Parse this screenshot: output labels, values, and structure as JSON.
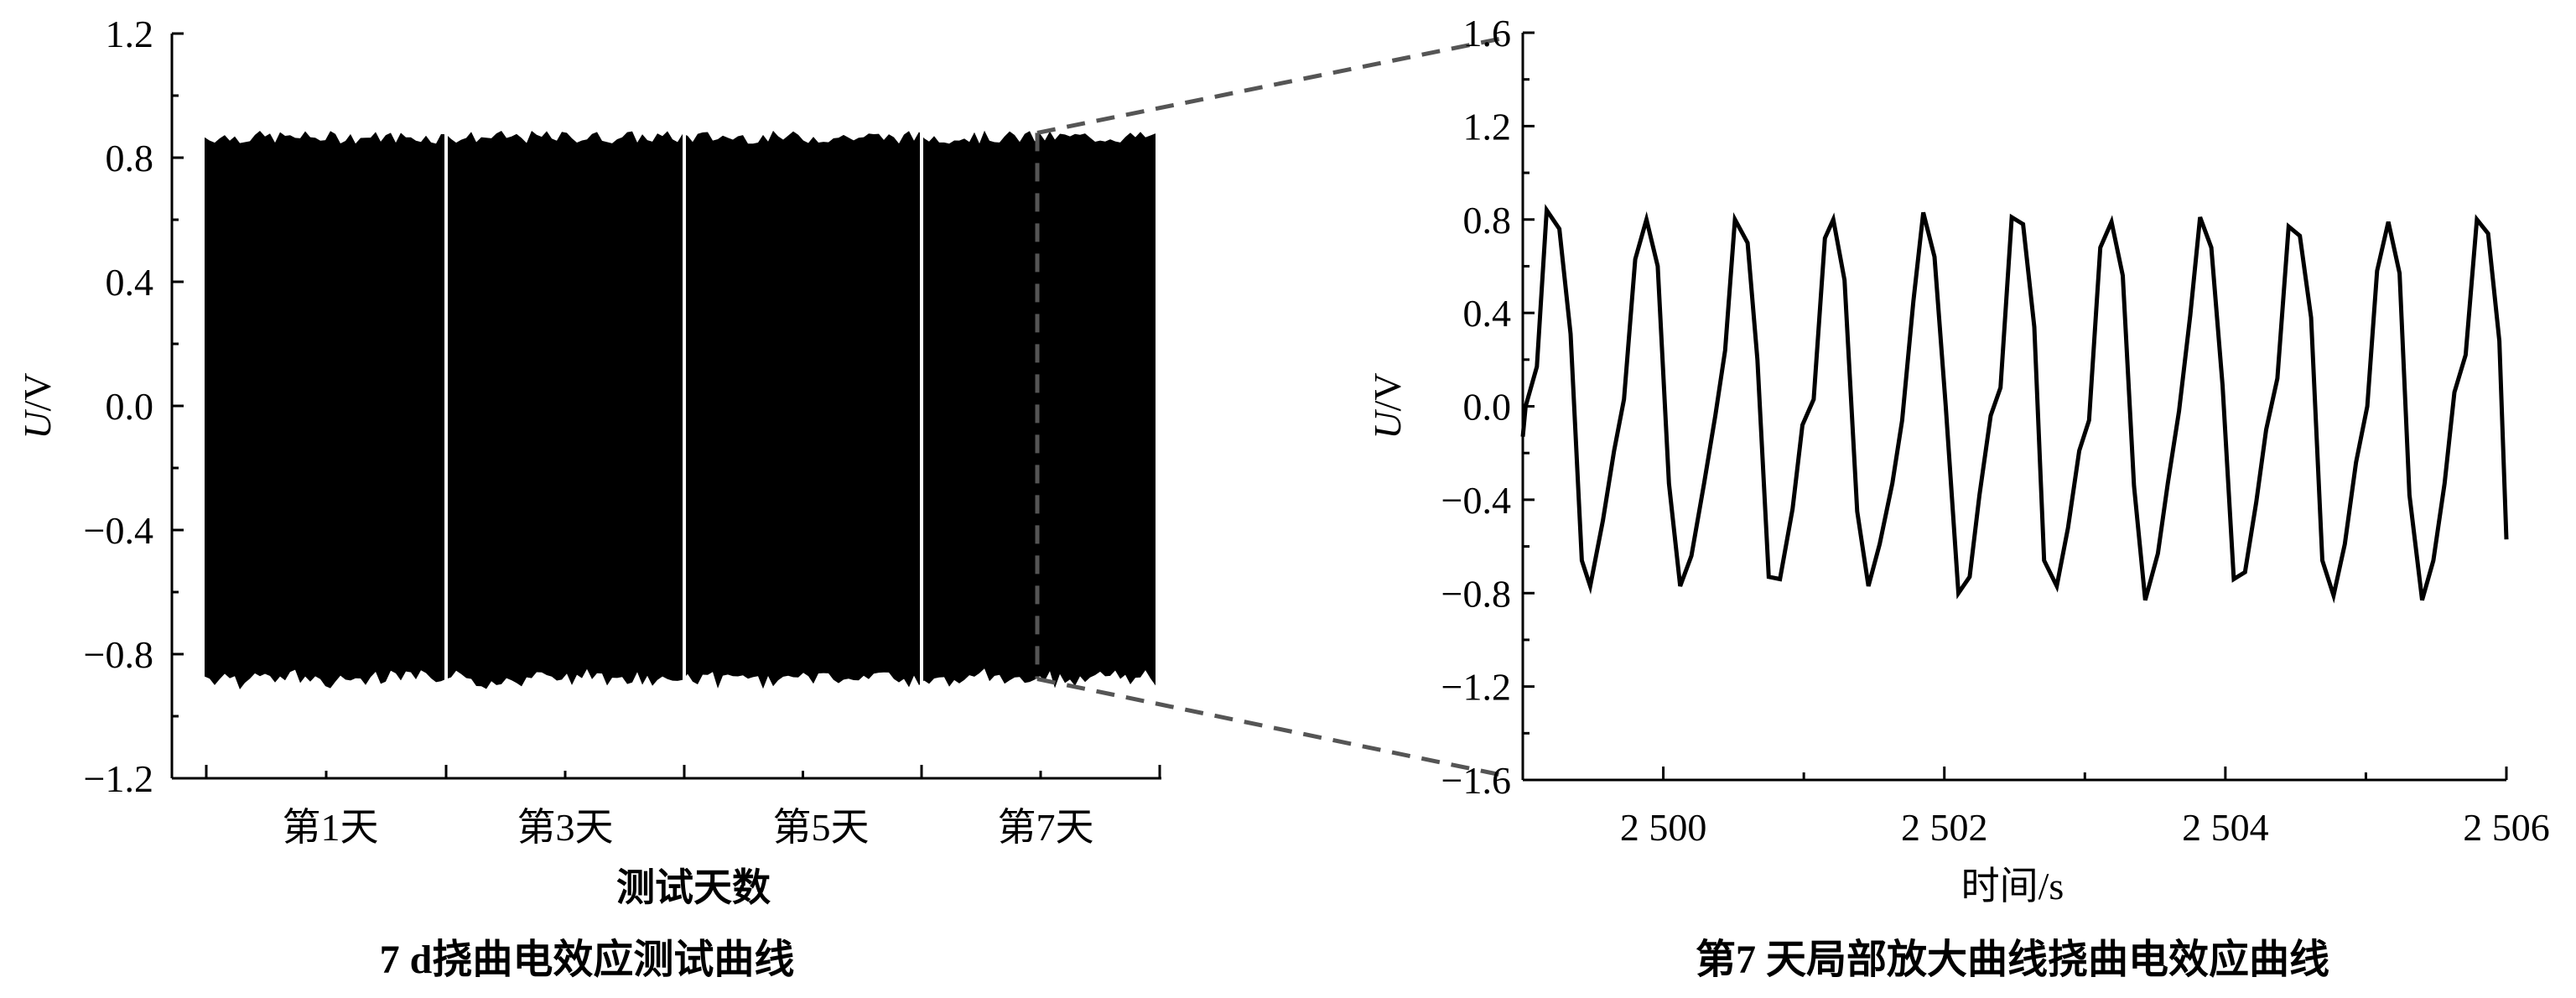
{
  "chart_data": [
    {
      "type": "area",
      "caption": "7 d挠曲电效应测试曲线",
      "xlabel": "测试天数",
      "ylabel": "U/V",
      "ylabel_italic_part": "U",
      "ylabel_rest": "/V",
      "ylim": [
        -1.2,
        1.2
      ],
      "yticks": [
        -1.2,
        -0.8,
        -0.4,
        0.0,
        0.4,
        0.8,
        1.2
      ],
      "ytick_labels": [
        "−1.2",
        "−0.8",
        "−0.4",
        "0.0",
        "0.4",
        "0.8",
        "1.2"
      ],
      "xtick_labels": [
        "第1天",
        "第3天",
        "第5天",
        "第7天"
      ],
      "envelope": {
        "upper": 0.85,
        "lower": -0.85,
        "peak_upper": 0.88,
        "peak_lower": -0.88
      },
      "zoom_box": {
        "upper": 0.88,
        "lower": -0.88
      },
      "series_color": "#000000",
      "zoom_indicator_color": "#555555",
      "grid": false
    },
    {
      "type": "line",
      "caption": "第7 天局部放大曲线挠曲电效应曲线",
      "xlabel": "时间/s",
      "ylabel": "U/V",
      "ylabel_italic_part": "U",
      "ylabel_rest": "/V",
      "xlim": [
        2499.0,
        2506.0
      ],
      "ylim": [
        -1.6,
        1.6
      ],
      "xticks": [
        2500,
        2502,
        2504,
        2506
      ],
      "xtick_labels": [
        "2 500",
        "2 502",
        "2 504",
        "2 506"
      ],
      "yticks": [
        -1.6,
        -1.2,
        -0.8,
        -0.4,
        0.0,
        0.4,
        0.8,
        1.2,
        1.6
      ],
      "ytick_labels": [
        "−1.6",
        "−1.2",
        "−0.8",
        "−0.4",
        "0.0",
        "0.4",
        "0.8",
        "1.2",
        "1.6"
      ],
      "grid": false,
      "series_color": "#000000",
      "x": [
        2499.0,
        2499.02,
        2499.1,
        2499.17,
        2499.26,
        2499.34,
        2499.42,
        2499.48,
        2499.57,
        2499.65,
        2499.72,
        2499.8,
        2499.88,
        2499.96,
        2500.04,
        2500.12,
        2500.2,
        2500.29,
        2500.37,
        2500.44,
        2500.51,
        2500.6,
        2500.67,
        2500.75,
        2500.83,
        2500.92,
        2500.99,
        2501.07,
        2501.15,
        2501.21,
        2501.29,
        2501.38,
        2501.46,
        2501.54,
        2501.63,
        2501.7,
        2501.78,
        2501.85,
        2501.93,
        2502.01,
        2502.1,
        2502.18,
        2502.25,
        2502.33,
        2502.4,
        2502.48,
        2502.56,
        2502.64,
        2502.71,
        2502.8,
        2502.88,
        2502.96,
        2503.03,
        2503.11,
        2503.19,
        2503.27,
        2503.35,
        2503.43,
        2503.52,
        2503.59,
        2503.67,
        2503.75,
        2503.82,
        2503.9,
        2503.98,
        2504.06,
        2504.14,
        2504.22,
        2504.29,
        2504.37,
        2504.45,
        2504.53,
        2504.61,
        2504.69,
        2504.77,
        2504.85,
        2504.93,
        2505.01,
        2505.08,
        2505.16,
        2505.24,
        2505.31,
        2505.4,
        2505.48,
        2505.56,
        2505.63,
        2505.71,
        2505.79,
        2505.87,
        2505.95,
        2506.0
      ],
      "y": [
        -0.13,
        0.0,
        0.17,
        0.84,
        0.76,
        0.31,
        -0.66,
        -0.77,
        -0.49,
        -0.19,
        0.03,
        0.63,
        0.8,
        0.6,
        -0.33,
        -0.77,
        -0.64,
        -0.33,
        -0.04,
        0.24,
        0.8,
        0.7,
        0.2,
        -0.73,
        -0.74,
        -0.44,
        -0.08,
        0.03,
        0.72,
        0.8,
        0.54,
        -0.45,
        -0.77,
        -0.59,
        -0.33,
        -0.06,
        0.45,
        0.83,
        0.64,
        0.0,
        -0.8,
        -0.73,
        -0.38,
        -0.04,
        0.08,
        0.81,
        0.78,
        0.34,
        -0.66,
        -0.77,
        -0.52,
        -0.19,
        -0.06,
        0.68,
        0.79,
        0.56,
        -0.34,
        -0.83,
        -0.63,
        -0.33,
        -0.02,
        0.39,
        0.81,
        0.68,
        0.09,
        -0.74,
        -0.71,
        -0.41,
        -0.1,
        0.12,
        0.77,
        0.73,
        0.38,
        -0.66,
        -0.81,
        -0.59,
        -0.24,
        0.0,
        0.58,
        0.79,
        0.57,
        -0.38,
        -0.83,
        -0.66,
        -0.33,
        0.06,
        0.22,
        0.8,
        0.74,
        0.28,
        -0.57
      ]
    }
  ]
}
